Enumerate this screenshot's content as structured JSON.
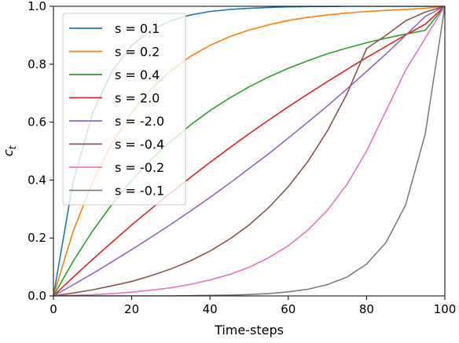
{
  "chart_data": {
    "type": "line",
    "title": "",
    "xlabel": "Time-steps",
    "ylabel": "c",
    "ylabel_subscript": "t",
    "xlim": [
      0,
      100
    ],
    "ylim": [
      0.0,
      1.0
    ],
    "xticks": [
      0,
      20,
      40,
      60,
      80,
      100
    ],
    "xtick_labels": [
      "0",
      "20",
      "40",
      "60",
      "80",
      "100"
    ],
    "yticks": [
      0.0,
      0.2,
      0.4,
      0.6,
      0.8,
      1.0
    ],
    "ytick_labels": [
      "0.0",
      "0.2",
      "0.4",
      "0.6",
      "0.8",
      "1.0"
    ],
    "grid": false,
    "legend_position": "upper-left",
    "x": [
      0,
      5,
      10,
      15,
      20,
      25,
      30,
      35,
      40,
      45,
      50,
      55,
      60,
      65,
      70,
      75,
      80,
      85,
      90,
      95,
      100
    ],
    "series": [
      {
        "name": "s = 0.1",
        "color": "#1f77b4",
        "values": [
          0.0,
          0.393,
          0.632,
          0.777,
          0.865,
          0.918,
          0.95,
          0.97,
          0.982,
          0.989,
          0.993,
          0.996,
          0.998,
          0.999,
          0.999,
          1.0,
          1.0,
          1.0,
          1.0,
          1.0,
          1.0
        ]
      },
      {
        "name": "s = 0.2",
        "color": "#ff7f0e",
        "values": [
          0.0,
          0.221,
          0.394,
          0.529,
          0.633,
          0.715,
          0.778,
          0.827,
          0.865,
          0.895,
          0.918,
          0.936,
          0.951,
          0.962,
          0.97,
          0.977,
          0.982,
          0.986,
          0.989,
          0.993,
          1.0
        ]
      },
      {
        "name": "s = 0.4",
        "color": "#2ca02c",
        "values": [
          0.0,
          0.119,
          0.224,
          0.317,
          0.399,
          0.471,
          0.534,
          0.59,
          0.64,
          0.683,
          0.722,
          0.756,
          0.786,
          0.812,
          0.836,
          0.856,
          0.874,
          0.89,
          0.904,
          0.917,
          1.0
        ]
      },
      {
        "name": "s = 2.0",
        "color": "#d62728",
        "values": [
          0.0,
          0.064,
          0.126,
          0.186,
          0.245,
          0.301,
          0.356,
          0.409,
          0.461,
          0.511,
          0.56,
          0.607,
          0.653,
          0.697,
          0.74,
          0.782,
          0.823,
          0.862,
          0.901,
          0.938,
          1.0
        ]
      },
      {
        "name": "s = -2.0",
        "color": "#9467bd",
        "values": [
          0.0,
          0.038,
          0.077,
          0.118,
          0.16,
          0.203,
          0.247,
          0.293,
          0.34,
          0.389,
          0.44,
          0.491,
          0.545,
          0.6,
          0.656,
          0.715,
          0.775,
          0.836,
          0.9,
          0.965,
          1.0
        ]
      },
      {
        "name": "s = -0.4",
        "color": "#8c564b",
        "values": [
          0.0,
          0.01,
          0.021,
          0.035,
          0.05,
          0.07,
          0.093,
          0.121,
          0.155,
          0.196,
          0.245,
          0.305,
          0.377,
          0.464,
          0.57,
          0.698,
          0.854,
          0.9,
          0.95,
          0.98,
          1.0
        ]
      },
      {
        "name": "s = -0.2",
        "color": "#e377c2",
        "values": [
          0.0,
          0.002,
          0.004,
          0.008,
          0.013,
          0.02,
          0.028,
          0.04,
          0.055,
          0.074,
          0.099,
          0.132,
          0.173,
          0.227,
          0.296,
          0.385,
          0.5,
          0.64,
          0.78,
          0.89,
          1.0
        ]
      },
      {
        "name": "s = -0.1",
        "color": "#7f7f7f",
        "values": [
          0.0,
          0.0,
          0.0,
          0.0,
          0.0,
          0.0,
          0.0,
          0.001,
          0.002,
          0.003,
          0.005,
          0.008,
          0.014,
          0.023,
          0.039,
          0.065,
          0.11,
          0.185,
          0.315,
          0.56,
          1.0
        ]
      }
    ]
  }
}
